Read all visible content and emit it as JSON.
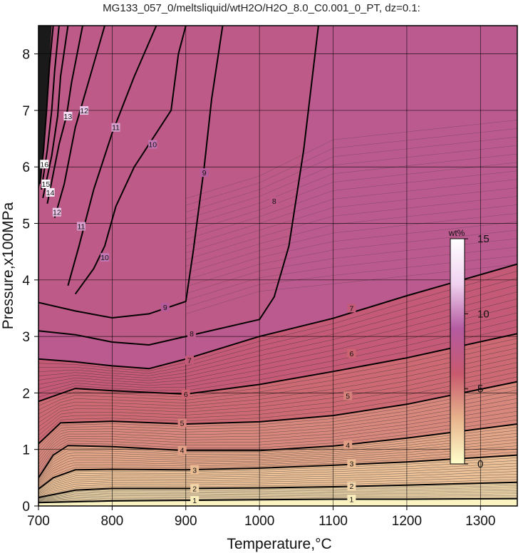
{
  "chart_data": {
    "type": "contour",
    "title": "MG133_057_0/meltsliquid/wtH2O/H2O_8.0_C0.001_0_PT, dz=0.1:",
    "xlabel": "Temperature,°C",
    "ylabel": "Pressure,x100MPa",
    "xlim": [
      700,
      1350
    ],
    "ylim": [
      0,
      8.5
    ],
    "xticks": [
      "700",
      "800",
      "900",
      "1000",
      "1100",
      "1200",
      "1300"
    ],
    "yticks": [
      "0",
      "1",
      "2",
      "3",
      "4",
      "5",
      "6",
      "7",
      "8"
    ],
    "grid": true,
    "colorbar": {
      "unit": "wt%",
      "range": [
        0,
        15
      ],
      "ticks": [
        "0",
        "5",
        "10",
        "15"
      ],
      "colors": [
        "#ffffcc",
        "#e8b48c",
        "#c85a6e",
        "#b45aa0",
        "#f0d2f0",
        "#ffffff"
      ]
    },
    "saturated_region_value": 8,
    "contour_interval": 0.1,
    "labeled_contours": [
      {
        "value": 1,
        "points": [
          [
            700,
            0.06
          ],
          [
            800,
            0.09
          ],
          [
            900,
            0.1
          ],
          [
            1000,
            0.11
          ],
          [
            1100,
            0.12
          ],
          [
            1200,
            0.12
          ],
          [
            1350,
            0.13
          ]
        ],
        "labels": [
          [
            912,
            0.1
          ],
          [
            1125,
            0.12
          ]
        ]
      },
      {
        "value": 2,
        "points": [
          [
            700,
            0.15
          ],
          [
            750,
            0.28
          ],
          [
            800,
            0.31
          ],
          [
            900,
            0.31
          ],
          [
            1000,
            0.32
          ],
          [
            1100,
            0.34
          ],
          [
            1200,
            0.37
          ],
          [
            1350,
            0.42
          ]
        ],
        "labels": [
          [
            912,
            0.31
          ],
          [
            1125,
            0.35
          ]
        ]
      },
      {
        "value": 3,
        "points": [
          [
            700,
            0.3
          ],
          [
            720,
            0.5
          ],
          [
            750,
            0.64
          ],
          [
            800,
            0.65
          ],
          [
            900,
            0.64
          ],
          [
            1000,
            0.67
          ],
          [
            1100,
            0.72
          ],
          [
            1200,
            0.78
          ],
          [
            1350,
            0.9
          ]
        ],
        "labels": [
          [
            912,
            0.64
          ],
          [
            1125,
            0.75
          ]
        ]
      },
      {
        "value": 4,
        "points": [
          [
            700,
            0.5
          ],
          [
            720,
            0.9
          ],
          [
            740,
            1.07
          ],
          [
            800,
            1.05
          ],
          [
            900,
            0.98
          ],
          [
            1000,
            0.98
          ],
          [
            1100,
            1.06
          ],
          [
            1200,
            1.2
          ],
          [
            1350,
            1.45
          ]
        ],
        "labels": [
          [
            895,
            0.99
          ],
          [
            1120,
            1.08
          ]
        ]
      },
      {
        "value": 5,
        "points": [
          [
            700,
            1.1
          ],
          [
            730,
            1.47
          ],
          [
            800,
            1.5
          ],
          [
            900,
            1.45
          ],
          [
            1000,
            1.49
          ],
          [
            1100,
            1.6
          ],
          [
            1200,
            1.8
          ],
          [
            1350,
            2.2
          ]
        ],
        "labels": [
          [
            895,
            1.47
          ],
          [
            1120,
            1.95
          ]
        ]
      },
      {
        "value": 6,
        "points": [
          [
            700,
            1.85
          ],
          [
            750,
            2.08
          ],
          [
            800,
            2.04
          ],
          [
            900,
            1.98
          ],
          [
            1000,
            2.15
          ],
          [
            1100,
            2.38
          ],
          [
            1200,
            2.62
          ],
          [
            1350,
            3.05
          ]
        ],
        "labels": [
          [
            900,
            1.98
          ],
          [
            1125,
            2.7
          ]
        ]
      },
      {
        "value": 7,
        "points": [
          [
            700,
            2.6
          ],
          [
            750,
            2.55
          ],
          [
            800,
            2.48
          ],
          [
            850,
            2.43
          ],
          [
            900,
            2.6
          ],
          [
            1000,
            3.0
          ],
          [
            1100,
            3.32
          ],
          [
            1200,
            3.72
          ],
          [
            1350,
            4.28
          ]
        ],
        "labels": [
          [
            905,
            2.58
          ],
          [
            1125,
            3.5
          ]
        ]
      },
      {
        "value": 8,
        "points": [
          [
            700,
            3.1
          ],
          [
            750,
            3.03
          ],
          [
            800,
            2.9
          ],
          [
            850,
            2.85
          ],
          [
            900,
            3.0
          ],
          [
            1000,
            3.3
          ],
          [
            1020,
            3.7
          ],
          [
            1040,
            4.6
          ],
          [
            1060,
            6.3
          ],
          [
            1080,
            8.5
          ]
        ],
        "labels": [
          [
            908,
            3.05
          ],
          [
            1020,
            5.4
          ]
        ]
      },
      {
        "value": 9,
        "points": [
          [
            700,
            3.6
          ],
          [
            750,
            3.45
          ],
          [
            800,
            3.33
          ],
          [
            850,
            3.4
          ],
          [
            900,
            3.62
          ],
          [
            910,
            4.5
          ],
          [
            925,
            6.0
          ],
          [
            935,
            7.2
          ],
          [
            950,
            8.5
          ]
        ],
        "labels": [
          [
            872,
            3.52
          ],
          [
            925,
            5.9
          ]
        ]
      },
      {
        "value": 10,
        "points": [
          [
            750,
            3.75
          ],
          [
            775,
            4.2
          ],
          [
            790,
            4.6
          ],
          [
            805,
            5.3
          ],
          [
            830,
            6.0
          ],
          [
            880,
            7.0
          ],
          [
            890,
            8.0
          ],
          [
            900,
            8.5
          ]
        ],
        "labels": [
          [
            790,
            4.4
          ],
          [
            855,
            6.4
          ]
        ]
      },
      {
        "value": 11,
        "points": [
          [
            740,
            3.9
          ],
          [
            755,
            4.6
          ],
          [
            775,
            5.6
          ],
          [
            800,
            6.6
          ],
          [
            830,
            7.6
          ],
          [
            860,
            8.5
          ]
        ],
        "labels": [
          [
            758,
            4.95
          ],
          [
            805,
            6.7
          ]
        ]
      },
      {
        "value": 12,
        "points": [
          [
            722,
            5.1
          ],
          [
            735,
            5.7
          ],
          [
            750,
            6.7
          ],
          [
            770,
            7.6
          ],
          [
            790,
            8.5
          ]
        ],
        "labels": [
          [
            725,
            5.2
          ],
          [
            762,
            7.0
          ]
        ]
      },
      {
        "value": 13,
        "points": [
          [
            712,
            5.35
          ],
          [
            728,
            6.4
          ],
          [
            738,
            6.9
          ],
          [
            745,
            7.5
          ],
          [
            760,
            8.5
          ]
        ],
        "labels": [
          [
            740,
            6.9
          ]
        ]
      },
      {
        "value": 14,
        "points": [
          [
            706,
            5.45
          ],
          [
            718,
            6.2
          ],
          [
            726,
            6.9
          ],
          [
            730,
            7.6
          ],
          [
            740,
            8.5
          ]
        ],
        "labels": [
          [
            716,
            5.55
          ]
        ]
      },
      {
        "value": 15,
        "points": [
          [
            704,
            5.6
          ],
          [
            712,
            6.3
          ],
          [
            718,
            7.0
          ],
          [
            722,
            7.7
          ],
          [
            728,
            8.5
          ]
        ],
        "labels": [
          [
            710,
            5.7
          ]
        ]
      },
      {
        "value": 16,
        "points": [
          [
            702,
            5.7
          ],
          [
            707,
            6.3
          ],
          [
            711,
            7.0
          ],
          [
            715,
            7.8
          ],
          [
            720,
            8.5
          ]
        ],
        "labels": [
          [
            708,
            6.05
          ]
        ]
      }
    ]
  }
}
